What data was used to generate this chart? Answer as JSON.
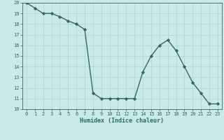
{
  "x": [
    0,
    1,
    2,
    3,
    4,
    5,
    6,
    7,
    8,
    9,
    10,
    11,
    12,
    13,
    14,
    15,
    16,
    17,
    18,
    19,
    20,
    21,
    22,
    23
  ],
  "y": [
    20,
    19.5,
    19,
    19,
    18.7,
    18.3,
    18,
    17.5,
    11.5,
    11,
    11,
    11,
    11,
    11,
    13.5,
    15,
    16,
    16.5,
    15.5,
    14,
    12.5,
    11.5,
    10.5,
    10.5
  ],
  "xlabel": "Humidex (Indice chaleur)",
  "xlim": [
    -0.5,
    23.5
  ],
  "ylim": [
    10,
    20
  ],
  "yticks": [
    10,
    11,
    12,
    13,
    14,
    15,
    16,
    17,
    18,
    19,
    20
  ],
  "xticks": [
    0,
    1,
    2,
    3,
    4,
    5,
    6,
    7,
    8,
    9,
    10,
    11,
    12,
    13,
    14,
    15,
    16,
    17,
    18,
    19,
    20,
    21,
    22,
    23
  ],
  "line_color": "#2e6b5e",
  "bg_color": "#c8eae8",
  "grid_color": "#b0d4d0",
  "marker": "D",
  "marker_size": 2.2,
  "line_width": 1.0
}
